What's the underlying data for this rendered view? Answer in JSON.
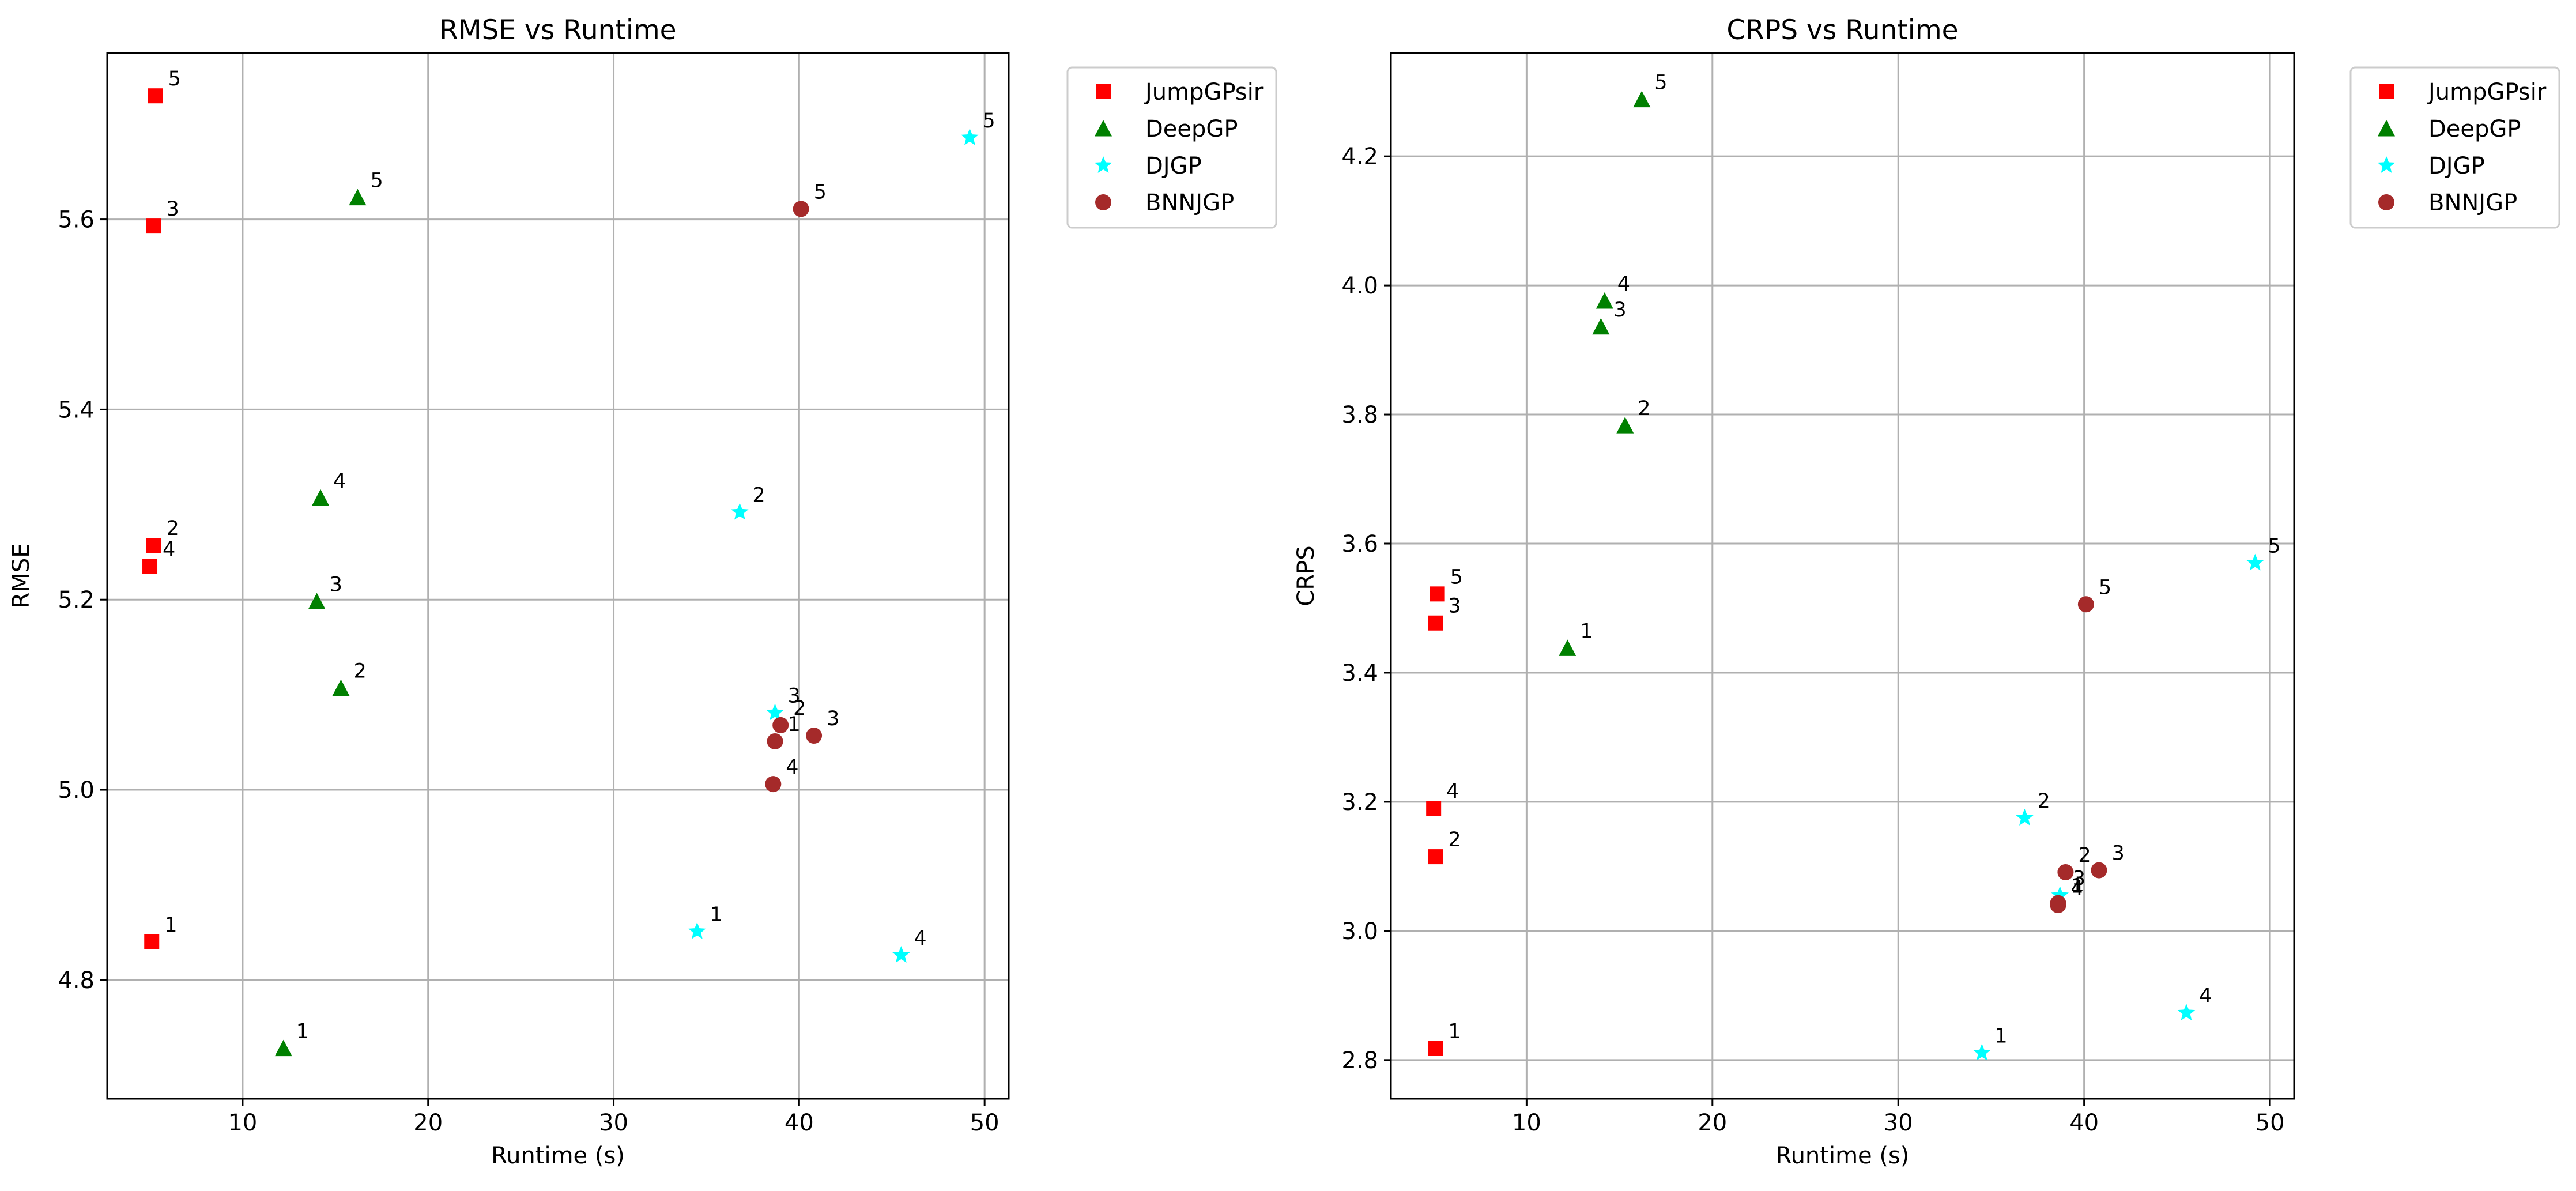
{
  "chart_data": [
    {
      "type": "scatter",
      "title": "RMSE vs Runtime",
      "xlabel": "Runtime (s)",
      "ylabel": "RMSE",
      "xlim": [
        2.7,
        51.3
      ],
      "ylim": [
        4.675,
        5.775
      ],
      "xticks": [
        10,
        20,
        30,
        40,
        50
      ],
      "yticks": [
        4.8,
        5.0,
        5.2,
        5.4,
        5.6
      ],
      "ytick_labels": [
        "4.8",
        "5.0",
        "5.2",
        "5.4",
        "5.6"
      ],
      "grid": true,
      "legend_position": "outside-upper-right",
      "series": [
        {
          "name": "JumpGPsir",
          "marker": "square",
          "color": "#ff0000",
          "points": [
            {
              "x": 5.1,
              "y": 4.84,
              "label": "1"
            },
            {
              "x": 5.2,
              "y": 5.257,
              "label": "2"
            },
            {
              "x": 5.2,
              "y": 5.593,
              "label": "3"
            },
            {
              "x": 5.0,
              "y": 5.235,
              "label": "4"
            },
            {
              "x": 5.3,
              "y": 5.73,
              "label": "5"
            }
          ]
        },
        {
          "name": "DeepGP",
          "marker": "triangle",
          "color": "#008000",
          "points": [
            {
              "x": 12.2,
              "y": 4.728,
              "label": "1"
            },
            {
              "x": 15.3,
              "y": 5.107,
              "label": "2"
            },
            {
              "x": 14.0,
              "y": 5.198,
              "label": "3"
            },
            {
              "x": 14.2,
              "y": 5.307,
              "label": "4"
            },
            {
              "x": 16.2,
              "y": 5.623,
              "label": "5"
            }
          ]
        },
        {
          "name": "DJGP",
          "marker": "star",
          "color": "#00ffff",
          "points": [
            {
              "x": 34.5,
              "y": 4.851,
              "label": "1"
            },
            {
              "x": 36.8,
              "y": 5.292,
              "label": "2"
            },
            {
              "x": 38.7,
              "y": 5.081,
              "label": "3"
            },
            {
              "x": 45.5,
              "y": 4.826,
              "label": "4"
            },
            {
              "x": 49.2,
              "y": 5.686,
              "label": "5"
            }
          ]
        },
        {
          "name": "BNNJGP",
          "marker": "circle",
          "color": "#a52a2a",
          "points": [
            {
              "x": 38.7,
              "y": 5.051,
              "label": "1"
            },
            {
              "x": 39.0,
              "y": 5.068,
              "label": "2"
            },
            {
              "x": 40.8,
              "y": 5.057,
              "label": "3"
            },
            {
              "x": 38.6,
              "y": 5.006,
              "label": "4"
            },
            {
              "x": 40.1,
              "y": 5.611,
              "label": "5"
            }
          ]
        }
      ]
    },
    {
      "type": "scatter",
      "title": "CRPS vs Runtime",
      "xlabel": "Runtime (s)",
      "ylabel": "CRPS",
      "xlim": [
        2.7,
        51.3
      ],
      "ylim": [
        2.74,
        4.36
      ],
      "xticks": [
        10,
        20,
        30,
        40,
        50
      ],
      "yticks": [
        2.8,
        3.0,
        3.2,
        3.4,
        3.6,
        3.8,
        4.0,
        4.2
      ],
      "ytick_labels": [
        "2.8",
        "3.0",
        "3.2",
        "3.4",
        "3.6",
        "3.8",
        "4.0",
        "4.2"
      ],
      "grid": true,
      "legend_position": "outside-upper-right",
      "series": [
        {
          "name": "JumpGPsir",
          "marker": "square",
          "color": "#ff0000",
          "points": [
            {
              "x": 5.1,
              "y": 2.818,
              "label": "1"
            },
            {
              "x": 5.1,
              "y": 3.115,
              "label": "2"
            },
            {
              "x": 5.1,
              "y": 3.477,
              "label": "3"
            },
            {
              "x": 5.0,
              "y": 3.19,
              "label": "4"
            },
            {
              "x": 5.2,
              "y": 3.522,
              "label": "5"
            }
          ]
        },
        {
          "name": "DeepGP",
          "marker": "triangle",
          "color": "#008000",
          "points": [
            {
              "x": 12.2,
              "y": 3.438,
              "label": "1"
            },
            {
              "x": 15.3,
              "y": 3.783,
              "label": "2"
            },
            {
              "x": 14.0,
              "y": 3.936,
              "label": "3"
            },
            {
              "x": 14.2,
              "y": 3.976,
              "label": "4"
            },
            {
              "x": 16.2,
              "y": 4.288,
              "label": "5"
            }
          ]
        },
        {
          "name": "DJGP",
          "marker": "star",
          "color": "#00ffff",
          "points": [
            {
              "x": 34.5,
              "y": 2.811,
              "label": "1"
            },
            {
              "x": 36.8,
              "y": 3.175,
              "label": "2"
            },
            {
              "x": 38.7,
              "y": 3.055,
              "label": "3"
            },
            {
              "x": 45.5,
              "y": 2.873,
              "label": "4"
            },
            {
              "x": 49.2,
              "y": 3.57,
              "label": "5"
            }
          ]
        },
        {
          "name": "BNNJGP",
          "marker": "circle",
          "color": "#a52a2a",
          "points": [
            {
              "x": 38.6,
              "y": 3.043,
              "label": "1"
            },
            {
              "x": 39.0,
              "y": 3.091,
              "label": "2"
            },
            {
              "x": 40.8,
              "y": 3.094,
              "label": "3"
            },
            {
              "x": 38.6,
              "y": 3.04,
              "label": "4"
            },
            {
              "x": 40.1,
              "y": 3.506,
              "label": "5"
            }
          ]
        }
      ]
    }
  ]
}
